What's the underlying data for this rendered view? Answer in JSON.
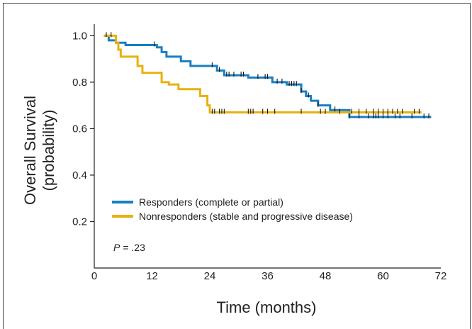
{
  "chart_data": {
    "type": "line",
    "xlabel": "Time (months)",
    "ylabel_line1": "Overall Survival",
    "ylabel_line2": "(probability)",
    "xlim": [
      0,
      72
    ],
    "ylim": [
      0,
      1.05
    ],
    "xticks": [
      0,
      12,
      24,
      36,
      48,
      60,
      72
    ],
    "xtick_labels": [
      "0",
      "12",
      "24",
      "36",
      "48",
      "60",
      "72"
    ],
    "yticks": [
      0.2,
      0.4,
      0.6,
      0.8,
      1.0
    ],
    "ytick_labels": [
      "0.2",
      "0.4",
      "0.6",
      "0.8",
      "1.0"
    ],
    "grid": false,
    "legend_position": "bottom-left",
    "annotation": {
      "p_label": "P",
      "p_value": "= .23"
    },
    "series": [
      {
        "name": "Responders (complete or partial)",
        "color": "#1a7ec2",
        "steps": [
          [
            2,
            1.0
          ],
          [
            3,
            0.98
          ],
          [
            4.5,
            0.97
          ],
          [
            6.5,
            0.96
          ],
          [
            13,
            0.95
          ],
          [
            14,
            0.93
          ],
          [
            15,
            0.91
          ],
          [
            18,
            0.89
          ],
          [
            20,
            0.87
          ],
          [
            25.5,
            0.85
          ],
          [
            27,
            0.83
          ],
          [
            32,
            0.82
          ],
          [
            37,
            0.8
          ],
          [
            40,
            0.79
          ],
          [
            43,
            0.76
          ],
          [
            44,
            0.74
          ],
          [
            45,
            0.72
          ],
          [
            46.5,
            0.7
          ],
          [
            49,
            0.68
          ],
          [
            53,
            0.65
          ],
          [
            70,
            0.65
          ]
        ],
        "censor_times": [
          2.5,
          12.5,
          24.5,
          26,
          27.5,
          28,
          29,
          30.5,
          31,
          34,
          35.5,
          36,
          38,
          39,
          40.5,
          41,
          41.5,
          42,
          43,
          44.5,
          46.5,
          50,
          53,
          55,
          57,
          58,
          58.5,
          59,
          60,
          61,
          62.5,
          63.5,
          66,
          68.5,
          69.5
        ]
      },
      {
        "name": "Nonresponders (stable and progressive disease)",
        "color": "#e8b10f",
        "steps": [
          [
            2,
            1.0
          ],
          [
            4.5,
            0.97
          ],
          [
            5,
            0.94
          ],
          [
            5.5,
            0.91
          ],
          [
            9,
            0.87
          ],
          [
            10,
            0.84
          ],
          [
            14,
            0.8
          ],
          [
            15.5,
            0.79
          ],
          [
            17.5,
            0.77
          ],
          [
            22,
            0.74
          ],
          [
            23.5,
            0.7
          ],
          [
            24,
            0.67
          ],
          [
            68,
            0.67
          ]
        ],
        "censor_times": [
          3.5,
          24.5,
          25,
          26,
          26.5,
          27,
          32,
          32.5,
          33,
          35,
          36,
          37.5,
          43,
          47,
          48,
          51,
          53.5,
          55,
          56.5,
          58,
          59,
          60,
          61,
          62,
          63,
          64,
          66.5,
          67.5
        ]
      }
    ]
  }
}
